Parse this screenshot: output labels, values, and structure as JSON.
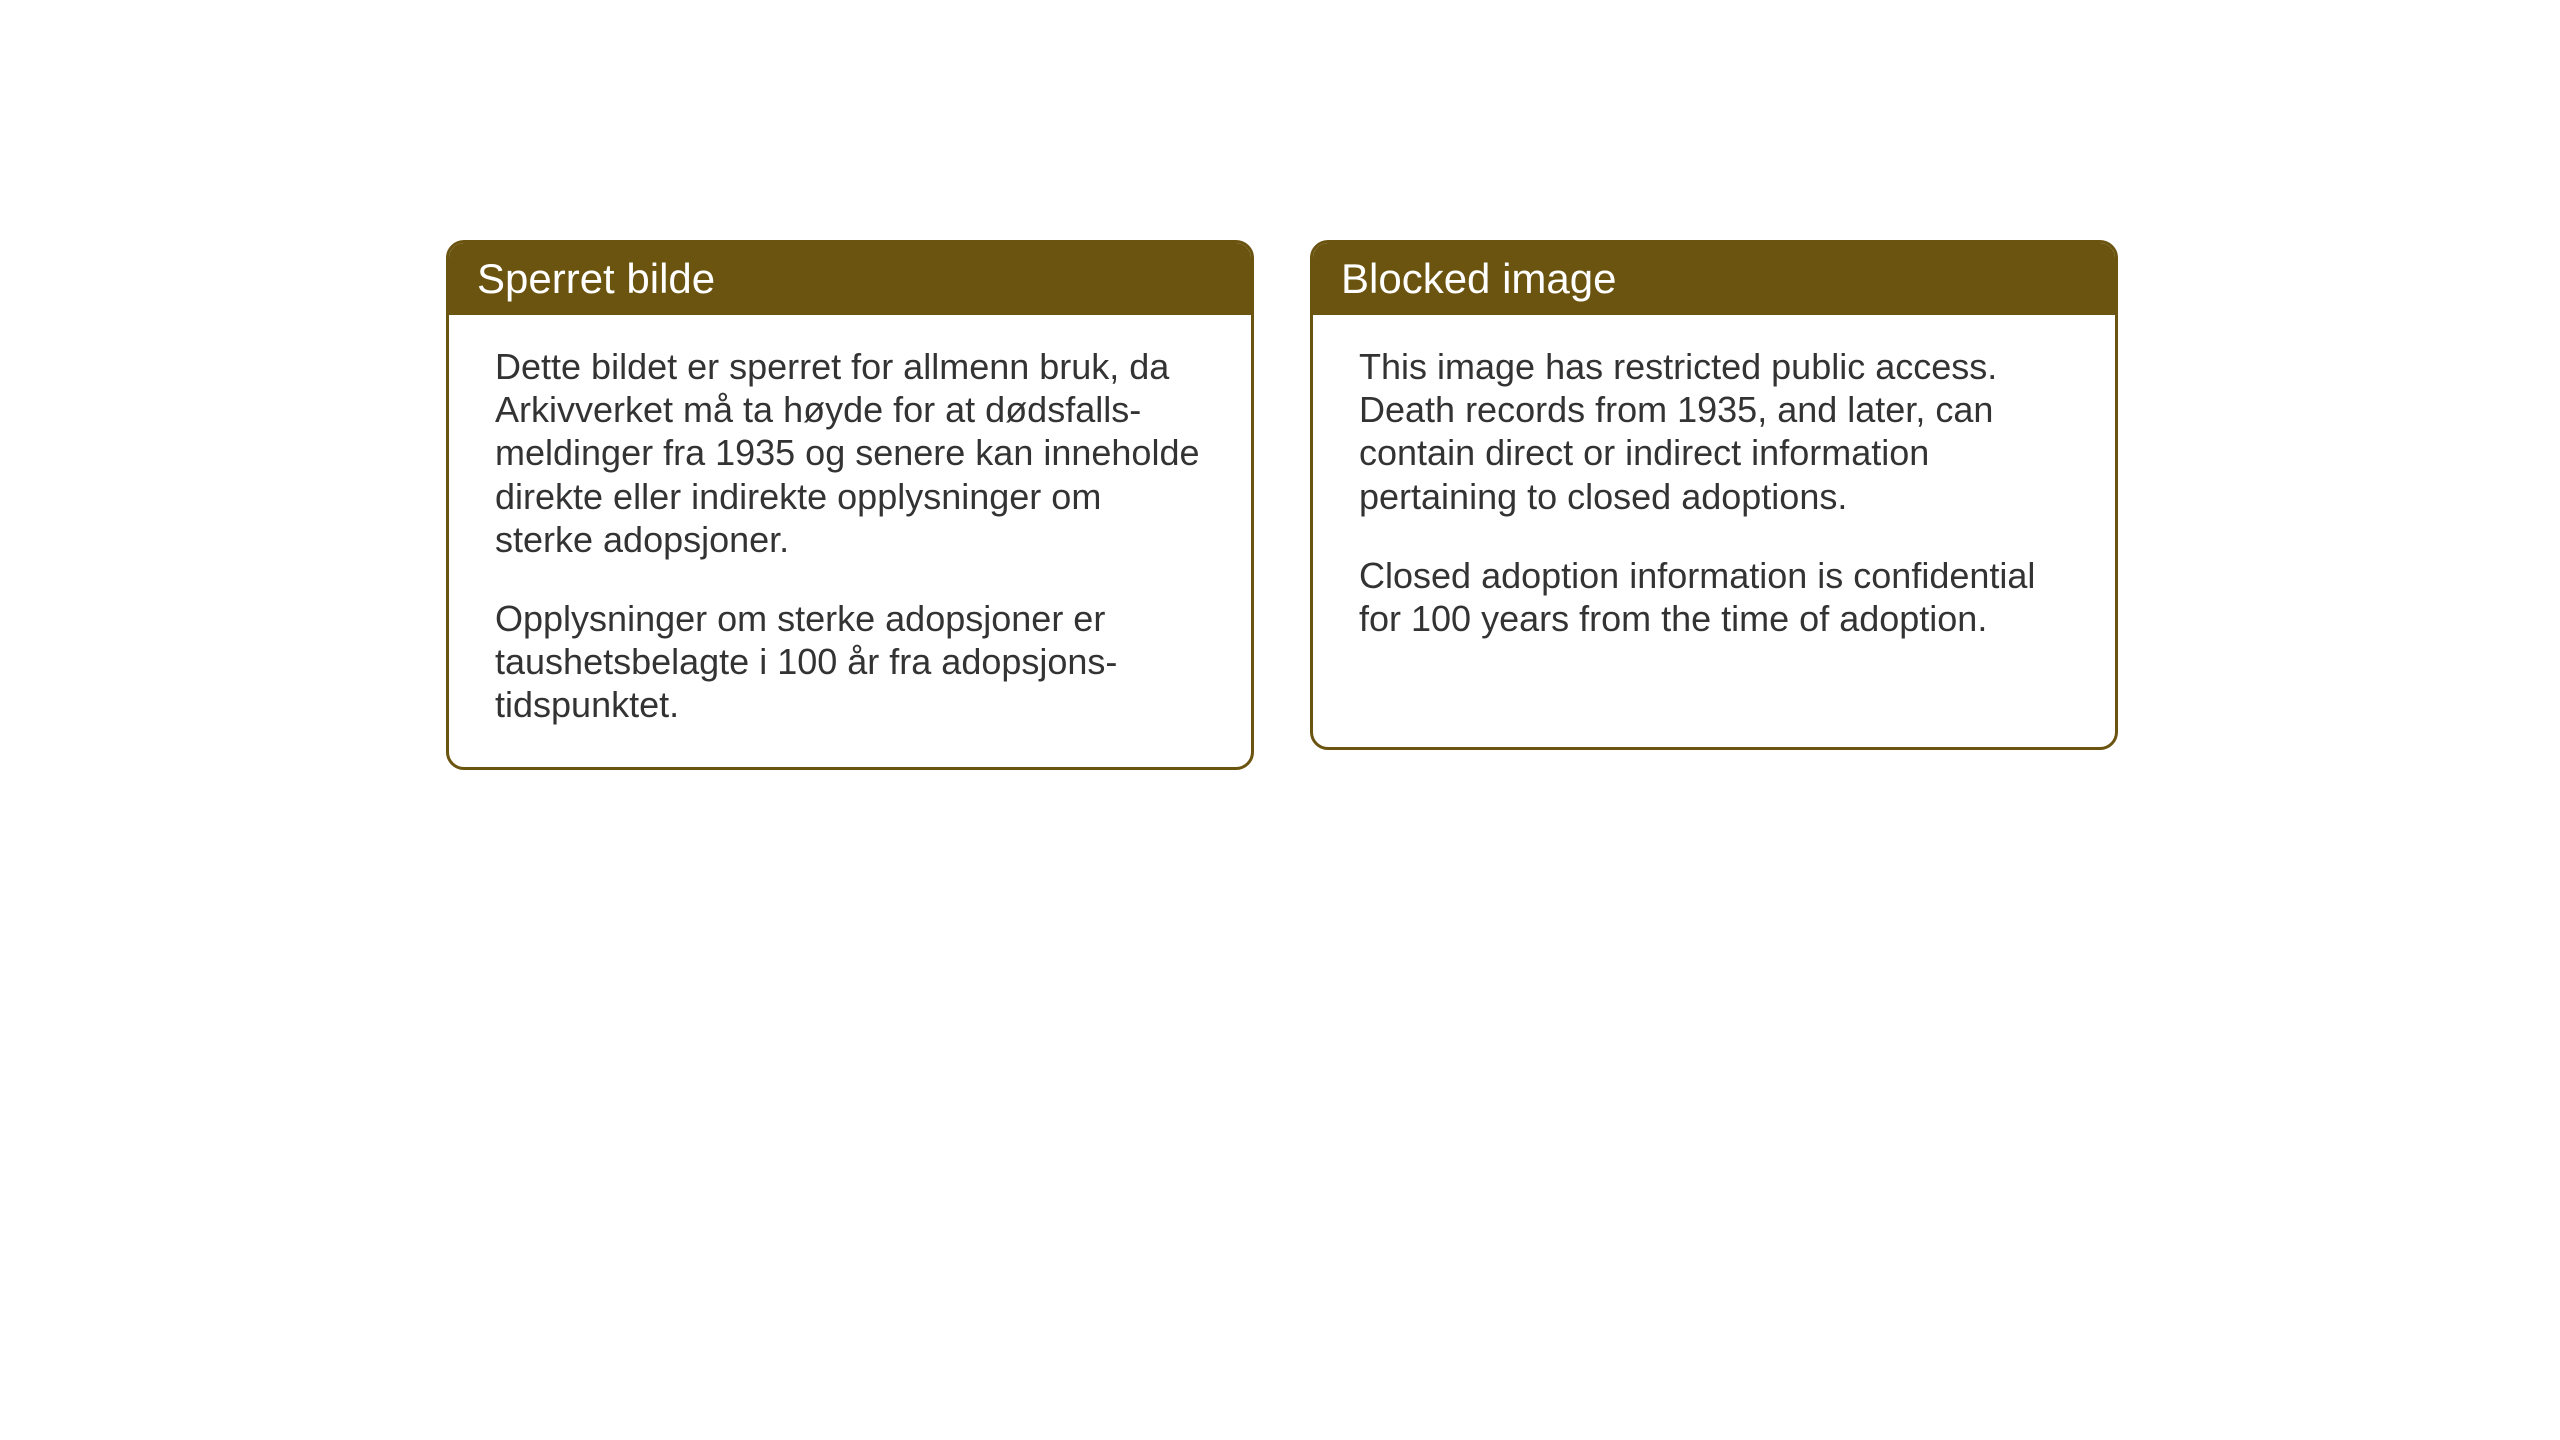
{
  "cards": {
    "norwegian": {
      "title": "Sperret bilde",
      "paragraph1": "Dette bildet er sperret for allmenn bruk, da Arkivverket må ta høyde for at dødsfalls-meldinger fra 1935 og senere kan inneholde direkte eller indirekte opplysninger om sterke adopsjoner.",
      "paragraph2": "Opplysninger om sterke adopsjoner er taushetsbelagte i 100 år fra adopsjons-tidspunktet."
    },
    "english": {
      "title": "Blocked image",
      "paragraph1": "This image has restricted public access. Death records from 1935, and later, can contain direct or indirect information pertaining to closed adoptions.",
      "paragraph2": "Closed adoption information is confidential for 100 years from the time of adoption."
    }
  },
  "styling": {
    "header_background": "#6b5410",
    "header_text_color": "#ffffff",
    "border_color": "#6b5410",
    "body_text_color": "#333333",
    "background_color": "#ffffff",
    "title_fontsize": 42,
    "body_fontsize": 36,
    "border_radius": 18,
    "border_width": 3
  }
}
